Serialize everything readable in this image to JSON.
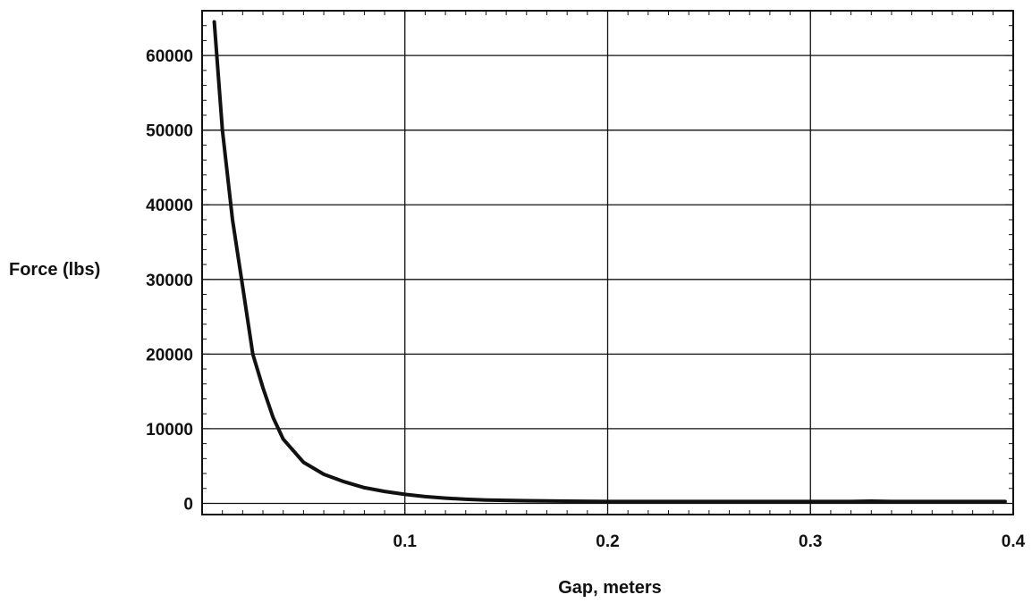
{
  "chart_data": {
    "type": "line",
    "title": "",
    "xlabel": "Gap, meters",
    "ylabel": "Force (lbs)",
    "xlim": [
      0.0,
      0.4
    ],
    "ylim": [
      -1500,
      66000
    ],
    "x_ticks": [
      0.1,
      0.2,
      0.3,
      0.4
    ],
    "x_tick_labels": [
      "0.1",
      "0.2",
      "0.3",
      "0.4"
    ],
    "y_ticks": [
      0,
      10000,
      20000,
      30000,
      40000,
      50000,
      60000
    ],
    "y_tick_labels": [
      "0",
      "10000",
      "20000",
      "30000",
      "40000",
      "50000",
      "60000"
    ],
    "grid": true,
    "series": [
      {
        "x": [
          0.006,
          0.01,
          0.015,
          0.02,
          0.025,
          0.03,
          0.035,
          0.04,
          0.05,
          0.06,
          0.07,
          0.08,
          0.09,
          0.1,
          0.11,
          0.12,
          0.13,
          0.14,
          0.15,
          0.16,
          0.18,
          0.2,
          0.22,
          0.25,
          0.28,
          0.3,
          0.32,
          0.33,
          0.34,
          0.36,
          0.38,
          0.396
        ],
        "values": [
          64500,
          50000,
          38000,
          29000,
          20000,
          15500,
          11500,
          8600,
          5500,
          3900,
          2900,
          2100,
          1600,
          1200,
          900,
          700,
          550,
          450,
          400,
          350,
          300,
          250,
          250,
          250,
          250,
          250,
          250,
          300,
          250,
          250,
          250,
          250
        ]
      }
    ]
  }
}
